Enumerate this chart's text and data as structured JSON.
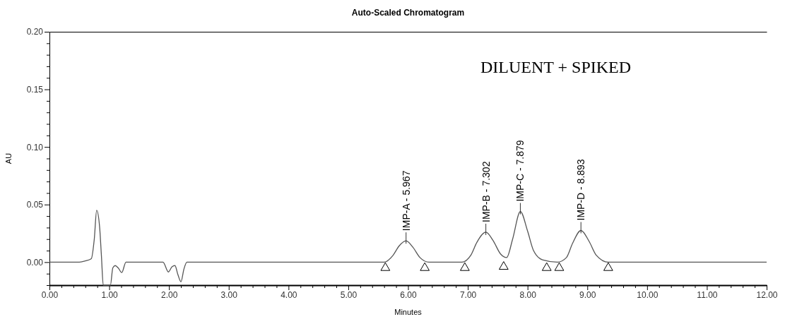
{
  "chart_data": {
    "type": "line",
    "title": "Auto-Scaled Chromatogram",
    "xlabel": "Minutes",
    "ylabel": "AU",
    "xlim": [
      0,
      12
    ],
    "ylim": [
      -0.02,
      0.2
    ],
    "xticks": [
      {
        "value": 0,
        "label": "0.00"
      },
      {
        "value": 0.2,
        "label": null
      },
      {
        "value": 0.4,
        "label": null
      },
      {
        "value": 0.6,
        "label": null
      },
      {
        "value": 0.8,
        "label": null
      },
      {
        "value": 1,
        "label": "1.00"
      },
      {
        "value": 1.2,
        "label": null
      },
      {
        "value": 1.4,
        "label": null
      },
      {
        "value": 1.6,
        "label": null
      },
      {
        "value": 1.8,
        "label": null
      },
      {
        "value": 2,
        "label": "2.00"
      },
      {
        "value": 2.2,
        "label": null
      },
      {
        "value": 2.4,
        "label": null
      },
      {
        "value": 2.6,
        "label": null
      },
      {
        "value": 2.8,
        "label": null
      },
      {
        "value": 3,
        "label": "3.00"
      },
      {
        "value": 3.2,
        "label": null
      },
      {
        "value": 3.4,
        "label": null
      },
      {
        "value": 3.6,
        "label": null
      },
      {
        "value": 3.8,
        "label": null
      },
      {
        "value": 4,
        "label": "4.00"
      },
      {
        "value": 4.2,
        "label": null
      },
      {
        "value": 4.4,
        "label": null
      },
      {
        "value": 4.6,
        "label": null
      },
      {
        "value": 4.8,
        "label": null
      },
      {
        "value": 5,
        "label": "5.00"
      },
      {
        "value": 5.2,
        "label": null
      },
      {
        "value": 5.4,
        "label": null
      },
      {
        "value": 5.6,
        "label": null
      },
      {
        "value": 5.8,
        "label": null
      },
      {
        "value": 6,
        "label": "6.00"
      },
      {
        "value": 6.2,
        "label": null
      },
      {
        "value": 6.4,
        "label": null
      },
      {
        "value": 6.6,
        "label": null
      },
      {
        "value": 6.8,
        "label": null
      },
      {
        "value": 7,
        "label": "7.00"
      },
      {
        "value": 7.2,
        "label": null
      },
      {
        "value": 7.4,
        "label": null
      },
      {
        "value": 7.6,
        "label": null
      },
      {
        "value": 7.8,
        "label": null
      },
      {
        "value": 8,
        "label": "8.00"
      },
      {
        "value": 8.2,
        "label": null
      },
      {
        "value": 8.4,
        "label": null
      },
      {
        "value": 8.6,
        "label": null
      },
      {
        "value": 8.8,
        "label": null
      },
      {
        "value": 9,
        "label": "9.00"
      },
      {
        "value": 9.2,
        "label": null
      },
      {
        "value": 9.4,
        "label": null
      },
      {
        "value": 9.6,
        "label": null
      },
      {
        "value": 9.8,
        "label": null
      },
      {
        "value": 10,
        "label": "10.00"
      },
      {
        "value": 10.2,
        "label": null
      },
      {
        "value": 10.4,
        "label": null
      },
      {
        "value": 10.6,
        "label": null
      },
      {
        "value": 10.8,
        "label": null
      },
      {
        "value": 11,
        "label": "11.00"
      },
      {
        "value": 11.2,
        "label": null
      },
      {
        "value": 11.4,
        "label": null
      },
      {
        "value": 11.6,
        "label": null
      },
      {
        "value": 11.8,
        "label": null
      },
      {
        "value": 12,
        "label": "12.00"
      }
    ],
    "yticks": [
      {
        "value": -0.02,
        "label": null
      },
      {
        "value": -0.01,
        "label": null
      },
      {
        "value": 0,
        "label": "0.00"
      },
      {
        "value": 0.01,
        "label": null
      },
      {
        "value": 0.02,
        "label": null
      },
      {
        "value": 0.03,
        "label": null
      },
      {
        "value": 0.04,
        "label": null
      },
      {
        "value": 0.05,
        "label": "0.05"
      },
      {
        "value": 0.06,
        "label": null
      },
      {
        "value": 0.07,
        "label": null
      },
      {
        "value": 0.08,
        "label": null
      },
      {
        "value": 0.09,
        "label": null
      },
      {
        "value": 0.1,
        "label": "0.10"
      },
      {
        "value": 0.11,
        "label": null
      },
      {
        "value": 0.12,
        "label": null
      },
      {
        "value": 0.13,
        "label": null
      },
      {
        "value": 0.14,
        "label": null
      },
      {
        "value": 0.15,
        "label": "0.15"
      },
      {
        "value": 0.16,
        "label": null
      },
      {
        "value": 0.17,
        "label": null
      },
      {
        "value": 0.18,
        "label": null
      },
      {
        "value": 0.19,
        "label": null
      },
      {
        "value": 0.2,
        "label": "0.20"
      }
    ],
    "grid": false,
    "series": [
      {
        "color": "#555555",
        "marker": "none",
        "line_style": "solid",
        "x": [
          0,
          0.5,
          0.6,
          0.7,
          0.75,
          0.79,
          0.84,
          0.87,
          0.9,
          1.02,
          1.06,
          1.1,
          1.15,
          1.21,
          1.28,
          1.5,
          1.9,
          1.99,
          2.05,
          2.1,
          2.15,
          2.2,
          2.25,
          2.3,
          3,
          4,
          5,
          5.6,
          5.75,
          5.85,
          5.967,
          6.08,
          6.2,
          6.35,
          6.9,
          7.05,
          7.15,
          7.302,
          7.42,
          7.55,
          7.65,
          7.75,
          7.879,
          8.0,
          8.1,
          8.25,
          8.5,
          8.65,
          8.75,
          8.893,
          9.03,
          9.15,
          9.35,
          10,
          11,
          12
        ],
        "values": [
          0,
          0,
          0.001,
          0.003,
          0.02,
          0.045,
          0.03,
          0.005,
          -0.02,
          -0.02,
          -0.005,
          -0.003,
          -0.005,
          -0.009,
          0,
          0,
          0,
          -0.0085,
          -0.004,
          -0.003,
          -0.011,
          -0.017,
          -0.006,
          0,
          0,
          0,
          0,
          0,
          0.006,
          0.014,
          0.0185,
          0.013,
          0.004,
          0,
          0,
          0.006,
          0.017,
          0.026,
          0.019,
          0.007,
          0.004,
          0.02,
          0.044,
          0.027,
          0.01,
          0.002,
          0,
          0.004,
          0.016,
          0.0275,
          0.018,
          0.006,
          0,
          0,
          0,
          0
        ]
      },
      {
        "type": "scatter",
        "color": "#000000",
        "marker": "triangle",
        "x": [
          5.62,
          6.28,
          6.95,
          7.6,
          8.32,
          8.53,
          9.35
        ],
        "values": [
          -0.005,
          -0.005,
          -0.005,
          -0.004,
          -0.005,
          -0.005,
          -0.005
        ]
      }
    ],
    "annotations": [
      {
        "text": "IMP-A - 5.967",
        "x": 5.967,
        "y": 0.0185
      },
      {
        "text": "IMP-B - 7.302",
        "x": 7.302,
        "y": 0.026
      },
      {
        "text": "IMP-C - 7.879",
        "x": 7.879,
        "y": 0.044
      },
      {
        "text": "IMP-D - 8.893",
        "x": 8.893,
        "y": 0.0275
      },
      "DILUENT + SPIKED"
    ]
  }
}
